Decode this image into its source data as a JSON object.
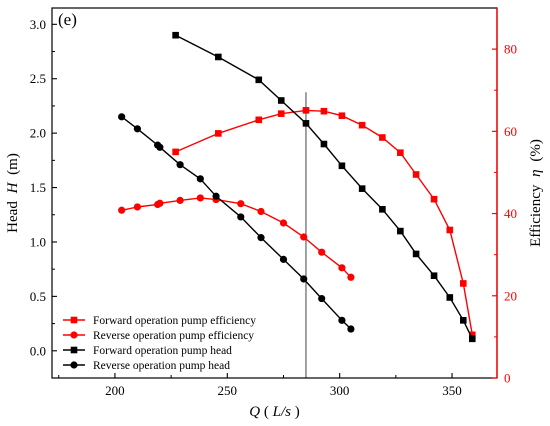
{
  "chart_data": {
    "type": "line",
    "panel_label": "(e)",
    "xlabel": {
      "symbol": "Q",
      "unit": "L/s"
    },
    "ylabel_left": {
      "text": "Head",
      "symbol": "H",
      "unit": "(m)"
    },
    "ylabel_right": {
      "text": "Efficiency",
      "symbol": "η",
      "unit": "(%)"
    },
    "xlim": [
      172,
      370
    ],
    "ylim_left": [
      -0.25,
      3.15
    ],
    "ylim_right": [
      0,
      90
    ],
    "xticks": [
      200,
      250,
      300,
      350
    ],
    "yticks_left": [
      0.0,
      0.5,
      1.0,
      1.5,
      2.0,
      2.5,
      3.0
    ],
    "yticks_right": [
      0,
      20,
      40,
      60,
      80
    ],
    "vertical_line_x": 285,
    "legend_position": "bottom-left",
    "colors": {
      "forward_efficiency": "#ff0000",
      "reverse_efficiency": "#ff0000",
      "forward_head": "#000000",
      "reverse_head": "#000000",
      "right_axis": "#ff0000",
      "left_axis": "#000000"
    },
    "series": [
      {
        "name": "Forward operation pump efficiency",
        "axis": "right",
        "marker": "square",
        "color": "#ff0000",
        "x": [
          227,
          246,
          264,
          274,
          285,
          293,
          301,
          310,
          319,
          327,
          334,
          342,
          349,
          355,
          359
        ],
        "y": [
          55.0,
          59.5,
          62.8,
          64.3,
          65.1,
          64.9,
          63.8,
          61.5,
          58.5,
          54.8,
          49.5,
          43.5,
          36.0,
          23.0,
          10.5
        ]
      },
      {
        "name": "Reverse operation pump efficiency",
        "axis": "right",
        "marker": "circle",
        "color": "#ff0000",
        "x": [
          203,
          210,
          219,
          220,
          229,
          238,
          245,
          256,
          265,
          275,
          284,
          292,
          301,
          305
        ],
        "y": [
          40.8,
          41.6,
          42.2,
          42.5,
          43.2,
          43.8,
          43.4,
          42.4,
          40.5,
          37.7,
          34.3,
          30.6,
          26.8,
          24.5
        ]
      },
      {
        "name": "Forward operation pump head",
        "axis": "left",
        "marker": "square",
        "color": "#000000",
        "x": [
          227,
          246,
          264,
          274,
          285,
          293,
          301,
          310,
          319,
          327,
          334,
          342,
          349,
          355,
          359
        ],
        "y": [
          2.9,
          2.7,
          2.49,
          2.3,
          2.09,
          1.9,
          1.7,
          1.49,
          1.3,
          1.1,
          0.89,
          0.69,
          0.49,
          0.28,
          0.11
        ]
      },
      {
        "name": "Reverse operation pump head",
        "axis": "left",
        "marker": "circle",
        "color": "#000000",
        "x": [
          203,
          210,
          219,
          220,
          229,
          238,
          245,
          256,
          265,
          275,
          284,
          292,
          301,
          305
        ],
        "y": [
          2.15,
          2.04,
          1.89,
          1.87,
          1.71,
          1.58,
          1.42,
          1.23,
          1.04,
          0.84,
          0.66,
          0.48,
          0.28,
          0.2
        ]
      }
    ]
  }
}
